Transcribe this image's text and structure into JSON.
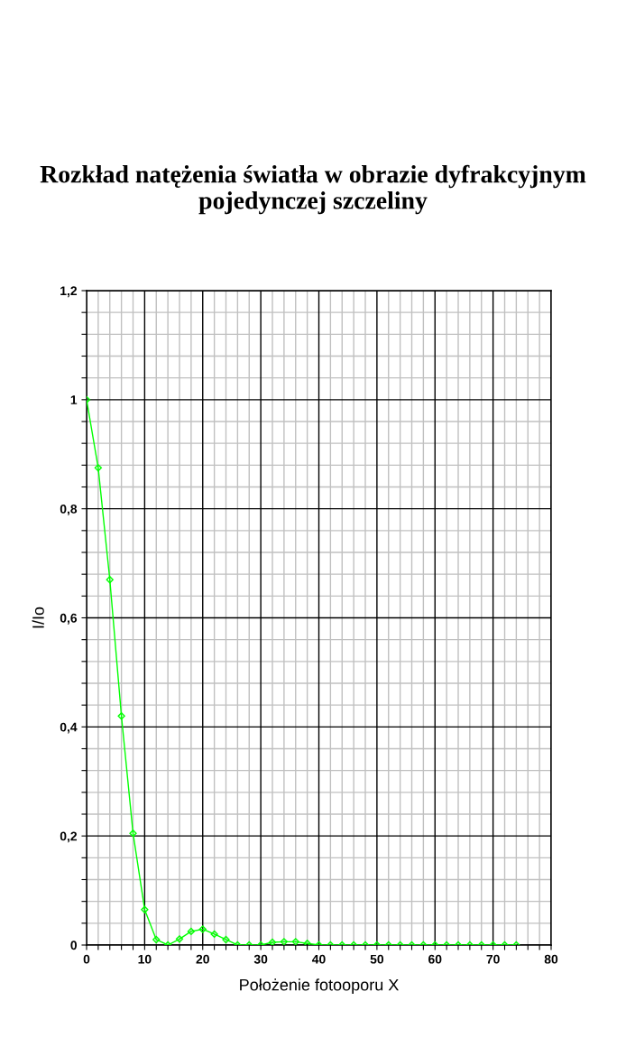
{
  "chart_data": {
    "type": "line",
    "title": "Rozkład natężenia światła w obrazie dyfrakcyjnym pojedynczej szczeliny",
    "xlabel": "Położenie fotooporu X",
    "ylabel": "I/Io",
    "x": [
      0,
      2,
      4,
      6,
      8,
      10,
      12,
      14,
      16,
      18,
      20,
      22,
      24,
      26,
      28,
      30,
      32,
      34,
      36,
      38,
      40,
      42,
      44,
      46,
      48,
      50,
      52,
      54,
      56,
      58,
      60,
      62,
      64,
      66,
      68,
      70,
      72,
      74
    ],
    "series": [
      {
        "color": "#00ff00",
        "values": [
          1,
          0.875,
          0.67,
          0.42,
          0.205,
          0.065,
          0.01,
          0,
          0.011,
          0.025,
          0.029,
          0.02,
          0.01,
          0,
          0,
          0,
          0.005,
          0.006,
          0.006,
          0.003,
          0,
          0,
          0,
          0,
          0,
          0,
          0,
          0,
          0,
          0,
          0,
          0,
          0,
          0,
          0,
          0,
          0,
          0
        ]
      }
    ],
    "xlim": [
      0,
      80
    ],
    "xticks": [
      0,
      {
        "value": 2,
        "label": null
      },
      {
        "value": 4,
        "label": null
      },
      {
        "value": 6,
        "label": null
      },
      {
        "value": 8,
        "label": null
      },
      10,
      {
        "value": 12,
        "label": null
      },
      {
        "value": 14,
        "label": null
      },
      {
        "value": 16,
        "label": null
      },
      {
        "value": 18,
        "label": null
      },
      20,
      {
        "value": 22,
        "label": null
      },
      {
        "value": 24,
        "label": null
      },
      {
        "value": 26,
        "label": null
      },
      {
        "value": 28,
        "label": null
      },
      30,
      {
        "value": 32,
        "label": null
      },
      {
        "value": 34,
        "label": null
      },
      {
        "value": 36,
        "label": null
      },
      {
        "value": 38,
        "label": null
      },
      40,
      {
        "value": 42,
        "label": null
      },
      {
        "value": 44,
        "label": null
      },
      {
        "value": 46,
        "label": null
      },
      {
        "value": 48,
        "label": null
      },
      50,
      {
        "value": 52,
        "label": null
      },
      {
        "value": 54,
        "label": null
      },
      {
        "value": 56,
        "label": null
      },
      {
        "value": 58,
        "label": null
      },
      60,
      {
        "value": 62,
        "label": null
      },
      {
        "value": 64,
        "label": null
      },
      {
        "value": 66,
        "label": null
      },
      {
        "value": 68,
        "label": null
      },
      70,
      {
        "value": 72,
        "label": null
      },
      {
        "value": 74,
        "label": null
      },
      {
        "value": 76,
        "label": null
      },
      {
        "value": 78,
        "label": null
      },
      80
    ],
    "ylim": [
      0,
      1.2
    ],
    "yticks": [
      0,
      {
        "value": 0.04,
        "label": null
      },
      {
        "value": 0.08,
        "label": null
      },
      {
        "value": 0.12,
        "label": null
      },
      {
        "value": 0.16,
        "label": null
      },
      {
        "value": 0.2,
        "label": "0,2"
      },
      {
        "value": 0.24,
        "label": null
      },
      {
        "value": 0.28,
        "label": null
      },
      {
        "value": 0.32,
        "label": null
      },
      {
        "value": 0.36,
        "label": null
      },
      {
        "value": 0.4,
        "label": "0,4"
      },
      {
        "value": 0.44,
        "label": null
      },
      {
        "value": 0.48,
        "label": null
      },
      {
        "value": 0.52,
        "label": null
      },
      {
        "value": 0.56,
        "label": null
      },
      {
        "value": 0.6,
        "label": "0,6"
      },
      {
        "value": 0.64,
        "label": null
      },
      {
        "value": 0.68,
        "label": null
      },
      {
        "value": 0.72,
        "label": null
      },
      {
        "value": 0.76,
        "label": null
      },
      {
        "value": 0.8,
        "label": "0,8"
      },
      {
        "value": 0.84,
        "label": null
      },
      {
        "value": 0.88,
        "label": null
      },
      {
        "value": 0.92,
        "label": null
      },
      {
        "value": 0.96,
        "label": null
      },
      1,
      {
        "value": 1.04,
        "label": null
      },
      {
        "value": 1.08,
        "label": null
      },
      {
        "value": 1.12,
        "label": null
      },
      {
        "value": 1.16,
        "label": null
      },
      {
        "value": 1.2,
        "label": "1,2"
      }
    ],
    "grid": true,
    "legend": false,
    "marker": "diamond",
    "line_style": "solid"
  }
}
